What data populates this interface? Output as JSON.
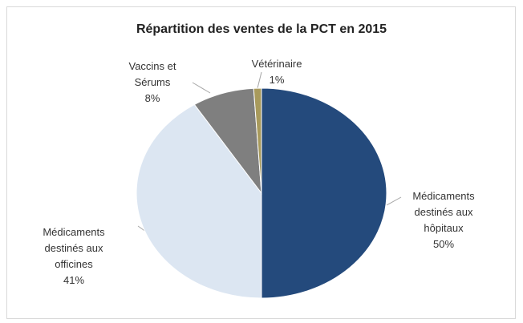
{
  "chart_data": {
    "type": "pie",
    "title": "Répartition des ventes de la PCT en 2015",
    "categories": [
      "Médicaments destinés aux hôpitaux",
      "Médicaments destinés aux officines",
      "Vaccins et Sérums",
      "Vétérinaire"
    ],
    "values": [
      50,
      41,
      8,
      1
    ],
    "value_labels": [
      "50%",
      "41%",
      "8%",
      "1%"
    ],
    "colors": [
      "#244a7c",
      "#dce6f2",
      "#7f7f7f",
      "#a89a5c"
    ]
  }
}
